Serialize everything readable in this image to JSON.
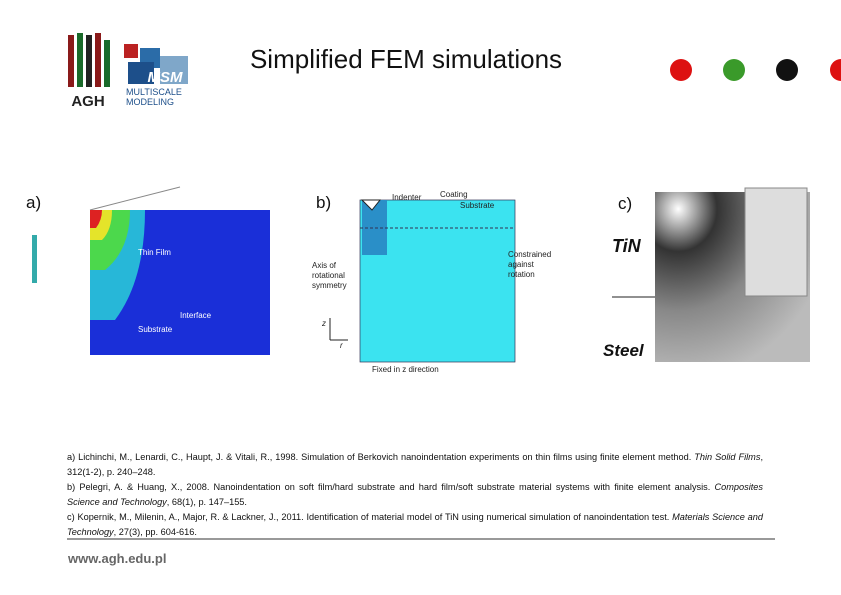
{
  "header": {
    "title": "Simplified FEM simulations",
    "logo_agh": "AGH",
    "logo_msm": "MSM",
    "logo_line1": "MULTISCALE",
    "logo_line2": "MODELING"
  },
  "figures": {
    "a": {
      "label": "a)",
      "annotations": [
        "Thin Film",
        "Interface",
        "Substrate"
      ]
    },
    "b": {
      "label": "b)",
      "annotations": [
        "Indenter",
        "Coating",
        "Substrate",
        "Axis of",
        "rotational",
        "symmetry",
        "Constrained",
        "against",
        "rotation",
        "Fixed in z direction",
        "z",
        "r"
      ]
    },
    "c": {
      "label": "c)",
      "annotations": [
        "TiN",
        "Steel"
      ]
    }
  },
  "references": [
    {
      "text": "a) Lichinchi, M., Lenardi, C., Haupt, J. & Vitali, R., 1998. Simulation of Berkovich nanoindentation experiments on thin films using finite element method. ",
      "journal": "Thin Solid Films",
      "details": ", 312(1-2), p. 240–248."
    },
    {
      "text": "b) Pelegri, A. & Huang, X., 2008. Nanoindentation on soft film/hard substrate and hard film/soft substrate material systems with finite element analysis. ",
      "journal": "Composites Science and Technology",
      "details": ", 68(1), p. 147–155."
    },
    {
      "text": "c) Kopernik, M., Milenin, A., Major, R. & Lackner, J., 2011. Identification of material model of TiN using numerical simulation of nanoindentation test. ",
      "journal": "Materials Science and Technology",
      "details": ", 27(3), pp. 604-616."
    }
  ],
  "footer": {
    "url": "www.agh.edu.pl"
  }
}
